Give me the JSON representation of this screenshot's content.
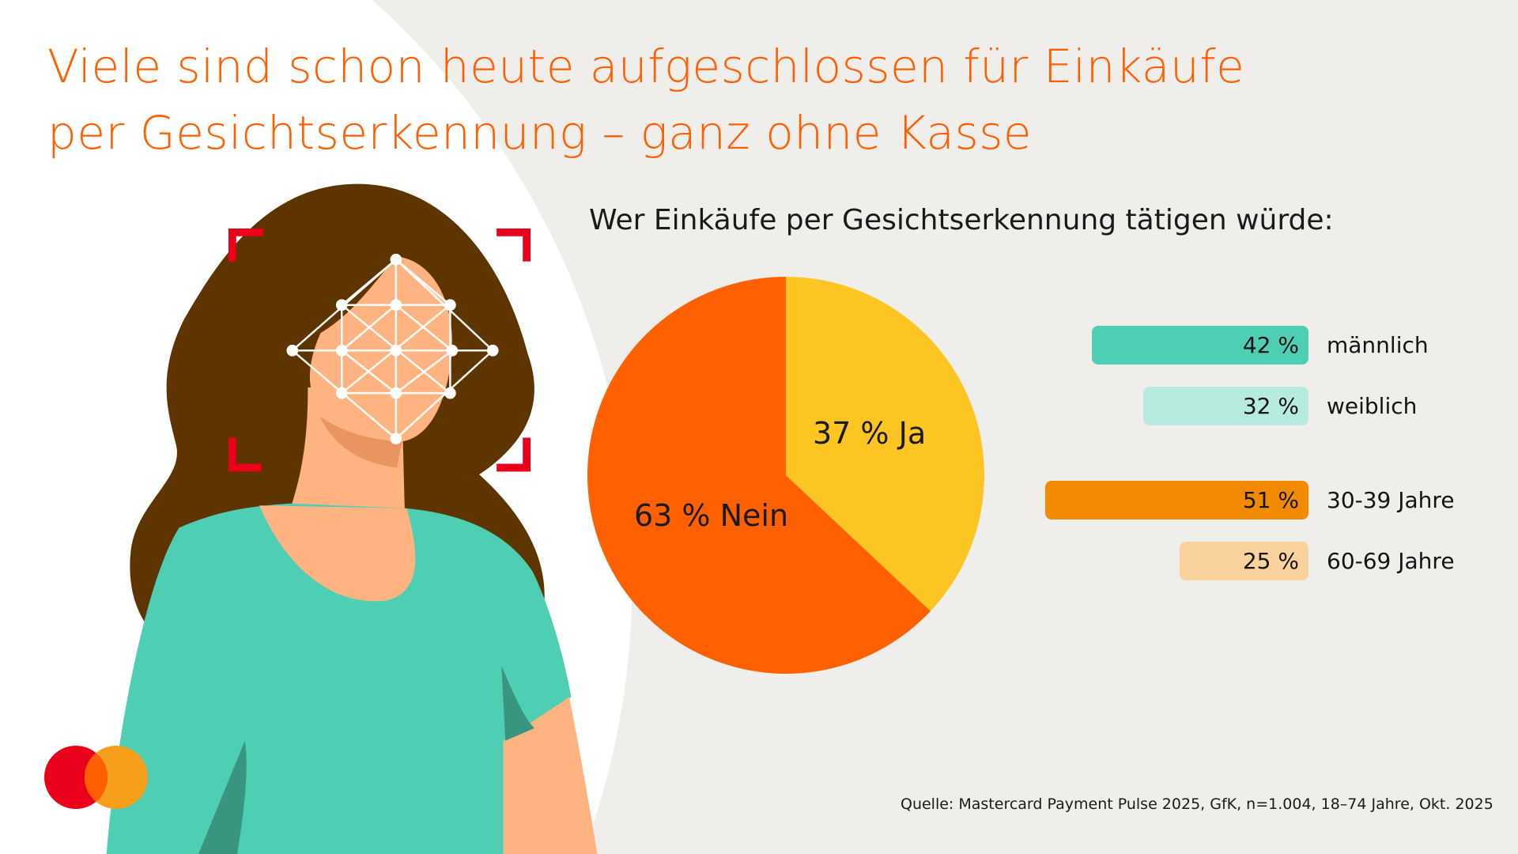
{
  "title": {
    "line1": "Viele sind schon heute aufgeschlossen für Einkäufe",
    "line2": "per Gesichtserkennung – ganz ohne Kasse"
  },
  "colors": {
    "background": "#efeeea",
    "accent": "#ff5f00",
    "hair": "#5e3500",
    "skin": "#ffb380",
    "shirt": "#4ecfb3",
    "frame": "#eb001b"
  },
  "logo": {
    "name": "mastercard-logo",
    "left_color": "#eb001b",
    "right_color": "#f79e1b"
  },
  "chart_data": [
    {
      "type": "pie",
      "title": "Wer Einkäufe per Gesichtserkennung tätigen würde:",
      "slices": [
        {
          "label": "Ja",
          "value": 37,
          "display": "37 % Ja",
          "color": "#fdc521"
        },
        {
          "label": "Nein",
          "value": 63,
          "display": "63 % Nein",
          "color": "#ff6000"
        }
      ]
    },
    {
      "type": "bar",
      "orientation": "horizontal",
      "categories": [
        "männlich",
        "weiblich",
        "30-39 Jahre",
        "60-69 Jahre"
      ],
      "values": [
        42,
        32,
        51,
        25
      ],
      "value_labels": [
        "42 %",
        "32 %",
        "51 %",
        "25 %"
      ],
      "colors": [
        "#4ecfb3",
        "#b8ebdf",
        "#f28a00",
        "#fad29c"
      ]
    }
  ],
  "source": "Quelle: Mastercard Payment Pulse 2025, GfK, n=1.004, 18–74 Jahre, Okt. 2025"
}
